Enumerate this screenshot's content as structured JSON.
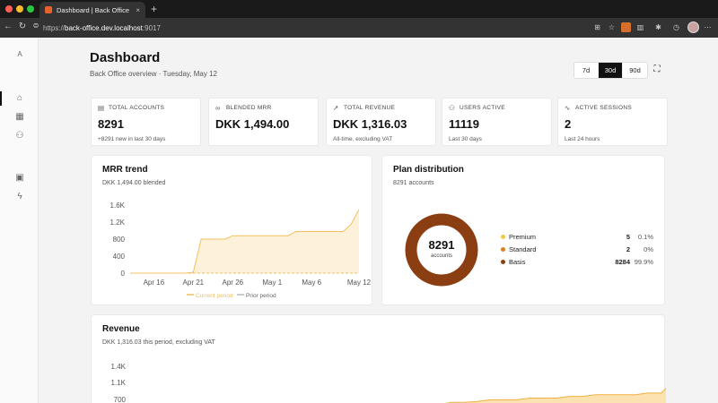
{
  "browser": {
    "tab_title": "Dashboard | Back Office",
    "tab_close": "×",
    "new_tab": "+",
    "url_scheme": "https://",
    "url_host": "back-office.dev.localhost",
    "url_port": ":9017"
  },
  "sidebar": {
    "avatar": "A"
  },
  "header": {
    "title": "Dashboard",
    "subtitle": "Back Office overview · Tuesday, May 12"
  },
  "range": {
    "options": [
      "7d",
      "30d",
      "90d"
    ],
    "selected": "30d",
    "fullscreen": "⛶"
  },
  "kpis": [
    {
      "label": "TOTAL ACCOUNTS",
      "value": "8291",
      "note": "+8291 new in last 30 days",
      "icon": "document-icon"
    },
    {
      "label": "BLENDED MRR",
      "value": "DKK 1,494.00",
      "note": "",
      "icon": "link-icon"
    },
    {
      "label": "TOTAL REVENUE",
      "value": "DKK 1,316.03",
      "note": "All-time, excluding VAT",
      "icon": "trend-icon"
    },
    {
      "label": "USERS ACTIVE",
      "value": "11119",
      "note": "Last 30 days",
      "icon": "users-icon"
    },
    {
      "label": "ACTIVE SESSIONS",
      "value": "2",
      "note": "Last 24 hours",
      "icon": "activity-icon"
    }
  ],
  "mrr": {
    "title": "MRR trend",
    "subtitle": "DKK 1,494.00 blended",
    "legend_current": "Current period",
    "legend_prior": "Prior period"
  },
  "plan": {
    "title": "Plan distribution",
    "subtitle": "8291 accounts",
    "center_value": "8291",
    "center_label": "accounts",
    "items": [
      {
        "name": "Premium",
        "count": "5",
        "pct": "0.1%",
        "color": "#f2c84b"
      },
      {
        "name": "Standard",
        "count": "2",
        "pct": "0%",
        "color": "#d9821e"
      },
      {
        "name": "Basis",
        "count": "8284",
        "pct": "99.9%",
        "color": "#8b3e12"
      }
    ]
  },
  "revenue": {
    "title": "Revenue",
    "subtitle": "DKK 1,316.03 this period, excluding VAT"
  },
  "chart_data": [
    {
      "type": "area",
      "title": "MRR trend",
      "x": [
        "Apr 13",
        "Apr 14",
        "Apr 15",
        "Apr 16",
        "Apr 17",
        "Apr 18",
        "Apr 19",
        "Apr 20",
        "Apr 21",
        "Apr 22",
        "Apr 23",
        "Apr 24",
        "Apr 25",
        "Apr 26",
        "Apr 27",
        "Apr 28",
        "Apr 29",
        "Apr 30",
        "May 1",
        "May 2",
        "May 3",
        "May 4",
        "May 5",
        "May 6",
        "May 7",
        "May 8",
        "May 9",
        "May 10",
        "May 11",
        "May 12"
      ],
      "x_ticks": [
        "Apr 16",
        "Apr 21",
        "Apr 26",
        "May 1",
        "May 6",
        "May 12"
      ],
      "y_ticks": [
        "0",
        "400",
        "800",
        "1.2K",
        "1.6K"
      ],
      "ylim": [
        0,
        1600
      ],
      "series": [
        {
          "name": "Current period",
          "values": [
            0,
            0,
            0,
            0,
            0,
            0,
            0,
            0,
            20,
            800,
            800,
            800,
            800,
            880,
            880,
            880,
            880,
            880,
            880,
            880,
            880,
            980,
            980,
            980,
            980,
            980,
            980,
            980,
            1150,
            1494
          ]
        },
        {
          "name": "Prior period",
          "values": [
            0,
            0,
            0,
            0,
            0,
            0,
            0,
            0,
            0,
            0,
            0,
            0,
            0,
            0,
            0,
            0,
            0,
            0,
            0,
            0,
            0,
            0,
            0,
            0,
            0,
            0,
            0,
            0,
            0,
            0
          ]
        }
      ],
      "colors": {
        "line": "#f0c060",
        "fill": "#fcefcf",
        "prior": "#999999"
      }
    },
    {
      "type": "pie",
      "title": "Plan distribution",
      "categories": [
        "Premium",
        "Standard",
        "Basis"
      ],
      "values": [
        5,
        2,
        8284
      ]
    },
    {
      "type": "area",
      "title": "Revenue",
      "x": [
        "Apr 13",
        "Apr 14",
        "Apr 15",
        "Apr 16",
        "Apr 17",
        "Apr 18",
        "Apr 19",
        "Apr 20",
        "Apr 21",
        "Apr 22",
        "Apr 23",
        "Apr 24",
        "Apr 25",
        "Apr 26",
        "Apr 27",
        "Apr 28",
        "Apr 29",
        "Apr 30",
        "May 1",
        "May 2",
        "May 3",
        "May 4",
        "May 5",
        "May 6",
        "May 7",
        "May 8",
        "May 9",
        "May 10",
        "May 11",
        "May 12"
      ],
      "y_ticks": [
        "700",
        "1.1K",
        "1.4K"
      ],
      "ylim": [
        700,
        1500
      ],
      "series": [
        {
          "name": "Current period",
          "values": [
            700,
            700,
            700,
            700,
            700,
            700,
            700,
            700,
            700,
            700,
            700,
            730,
            730,
            740,
            760,
            760,
            760,
            780,
            780,
            780,
            800,
            800,
            820,
            820,
            820,
            820,
            840,
            840,
            1000,
            1316
          ]
        }
      ],
      "colors": {
        "line": "#f0b040",
        "fill": "#fbe2b0"
      }
    }
  ]
}
